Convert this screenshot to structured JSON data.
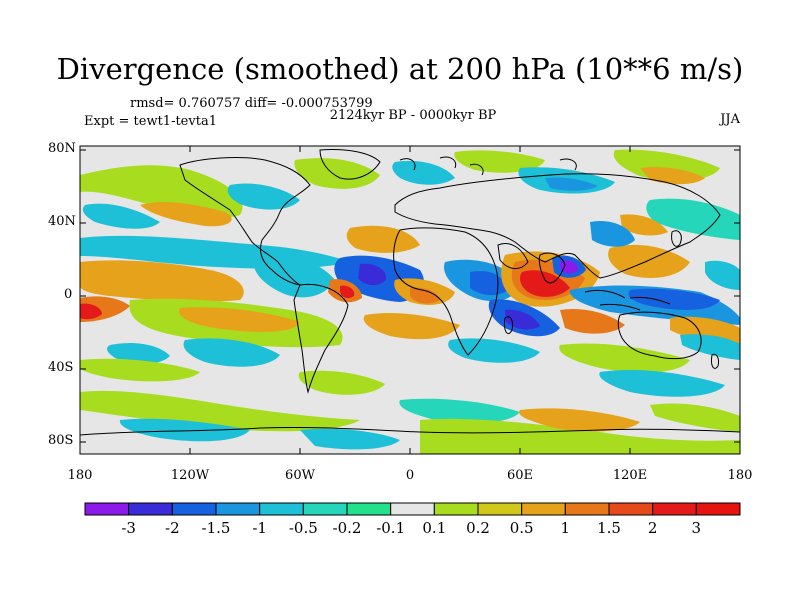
{
  "title": "Divergence (smoothed) at 200 hPa (10**6 m/s)",
  "stats_text": "rmsd= 0.760757 diff= -0.000753799",
  "period_text": "2124kyr BP - 0000kyr BP",
  "experiment_text": "Expt = tewt1-tevta1",
  "season_text": "JJA",
  "y_axis_ticks": [
    "80N",
    "40N",
    "0",
    "40S",
    "80S"
  ],
  "x_axis_ticks": [
    "180",
    "120W",
    "60W",
    "0",
    "60E",
    "120E",
    "180"
  ],
  "colorbar": {
    "labels": [
      "-3",
      "-2",
      "-1.5",
      "-1",
      "-0.5",
      "-0.2",
      "-0.1",
      "0.1",
      "0.2",
      "0.5",
      "1",
      "1.5",
      "2",
      "3"
    ],
    "colors": [
      "#8c1aeb",
      "#3a2bd8",
      "#1661e0",
      "#1a95e0",
      "#1ec0d8",
      "#26d6ba",
      "#22e08c",
      "#e6e6e6",
      "#a8dc1e",
      "#d2c81a",
      "#e6a21a",
      "#e6781a",
      "#e64a1a",
      "#e41a1a",
      "#e6140f"
    ]
  },
  "map_colors": {
    "background": "#e6e6e6",
    "coastline": "#000000"
  }
}
